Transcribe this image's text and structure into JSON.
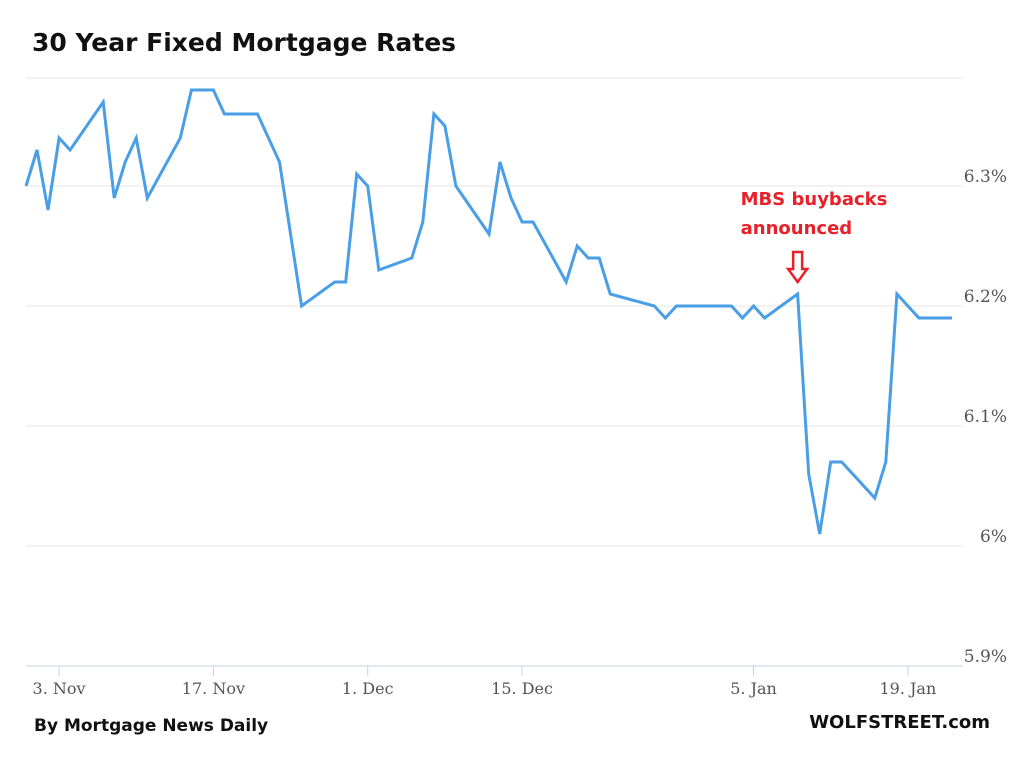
{
  "title": "30 Year Fixed Mortgage Rates",
  "footer": {
    "source": "By Mortgage News Daily",
    "brand": "WOLFSTREET.com"
  },
  "colors": {
    "line": "#4a9ee6",
    "grid": "#e6e6e6",
    "axis": "#c8cfe0",
    "annotation": "#e8202a"
  },
  "chart_data": {
    "type": "line",
    "title": "30 Year Fixed Mortgage Rates",
    "xlabel": "",
    "ylabel": "",
    "x_axis_type": "date",
    "xlim": [
      "2022-10-31",
      "2023-01-24"
    ],
    "ylim": [
      5.9,
      6.39
    ],
    "grid": true,
    "y_ticks": [
      {
        "value": 5.9,
        "label": "5.9%"
      },
      {
        "value": 6.0,
        "label": "6%"
      },
      {
        "value": 6.1,
        "label": "6.1%"
      },
      {
        "value": 6.2,
        "label": "6.2%"
      },
      {
        "value": 6.3,
        "label": "6.3%"
      }
    ],
    "x_ticks": [
      {
        "date": "2022-11-03",
        "label": "3. Nov"
      },
      {
        "date": "2022-11-17",
        "label": "17. Nov"
      },
      {
        "date": "2022-12-01",
        "label": "1. Dec"
      },
      {
        "date": "2022-12-15",
        "label": "15. Dec"
      },
      {
        "date": "2023-01-05",
        "label": "5. Jan"
      },
      {
        "date": "2023-01-19",
        "label": "19. Jan"
      }
    ],
    "series": [
      {
        "values": [
          [
            "2022-10-31",
            6.3
          ],
          [
            "2022-11-01",
            6.33
          ],
          [
            "2022-11-02",
            6.28
          ],
          [
            "2022-11-03",
            6.34
          ],
          [
            "2022-11-04",
            6.33
          ],
          [
            "2022-11-07",
            6.37
          ],
          [
            "2022-11-08",
            6.29
          ],
          [
            "2022-11-09",
            6.32
          ],
          [
            "2022-11-10",
            6.34
          ],
          [
            "2022-11-11",
            6.29
          ],
          [
            "2022-11-14",
            6.34
          ],
          [
            "2022-11-15",
            6.38
          ],
          [
            "2022-11-16",
            6.38
          ],
          [
            "2022-11-17",
            6.38
          ],
          [
            "2022-11-18",
            6.36
          ],
          [
            "2022-11-21",
            6.36
          ],
          [
            "2022-11-22",
            6.34
          ],
          [
            "2022-11-23",
            6.32
          ],
          [
            "2022-11-25",
            6.2
          ],
          [
            "2022-11-28",
            6.22
          ],
          [
            "2022-11-29",
            6.22
          ],
          [
            "2022-11-30",
            6.31
          ],
          [
            "2022-12-01",
            6.3
          ],
          [
            "2022-12-02",
            6.23
          ],
          [
            "2022-12-05",
            6.24
          ],
          [
            "2022-12-06",
            6.27
          ],
          [
            "2022-12-07",
            6.36
          ],
          [
            "2022-12-08",
            6.35
          ],
          [
            "2022-12-09",
            6.3
          ],
          [
            "2022-12-12",
            6.26
          ],
          [
            "2022-12-13",
            6.32
          ],
          [
            "2022-12-14",
            6.29
          ],
          [
            "2022-12-15",
            6.27
          ],
          [
            "2022-12-16",
            6.27
          ],
          [
            "2022-12-19",
            6.22
          ],
          [
            "2022-12-20",
            6.25
          ],
          [
            "2022-12-21",
            6.24
          ],
          [
            "2022-12-22",
            6.24
          ],
          [
            "2022-12-23",
            6.21
          ],
          [
            "2022-12-27",
            6.2
          ],
          [
            "2022-12-28",
            6.19
          ],
          [
            "2022-12-29",
            6.2
          ],
          [
            "2022-12-30",
            6.2
          ],
          [
            "2023-01-03",
            6.2
          ],
          [
            "2023-01-04",
            6.19
          ],
          [
            "2023-01-05",
            6.2
          ],
          [
            "2023-01-06",
            6.19
          ],
          [
            "2023-01-09",
            6.21
          ],
          [
            "2023-01-10",
            6.06
          ],
          [
            "2023-01-11",
            6.01
          ],
          [
            "2023-01-12",
            6.07
          ],
          [
            "2023-01-13",
            6.07
          ],
          [
            "2023-01-16",
            6.04
          ],
          [
            "2023-01-17",
            6.07
          ],
          [
            "2023-01-18",
            6.21
          ],
          [
            "2023-01-19",
            6.2
          ],
          [
            "2023-01-20",
            6.19
          ],
          [
            "2023-01-23",
            6.19
          ]
        ]
      }
    ],
    "annotations": [
      {
        "text_lines": [
          "MBS buybacks",
          "announced"
        ],
        "date": "2023-01-09",
        "value": 6.21,
        "marker": "down-arrow"
      }
    ]
  }
}
